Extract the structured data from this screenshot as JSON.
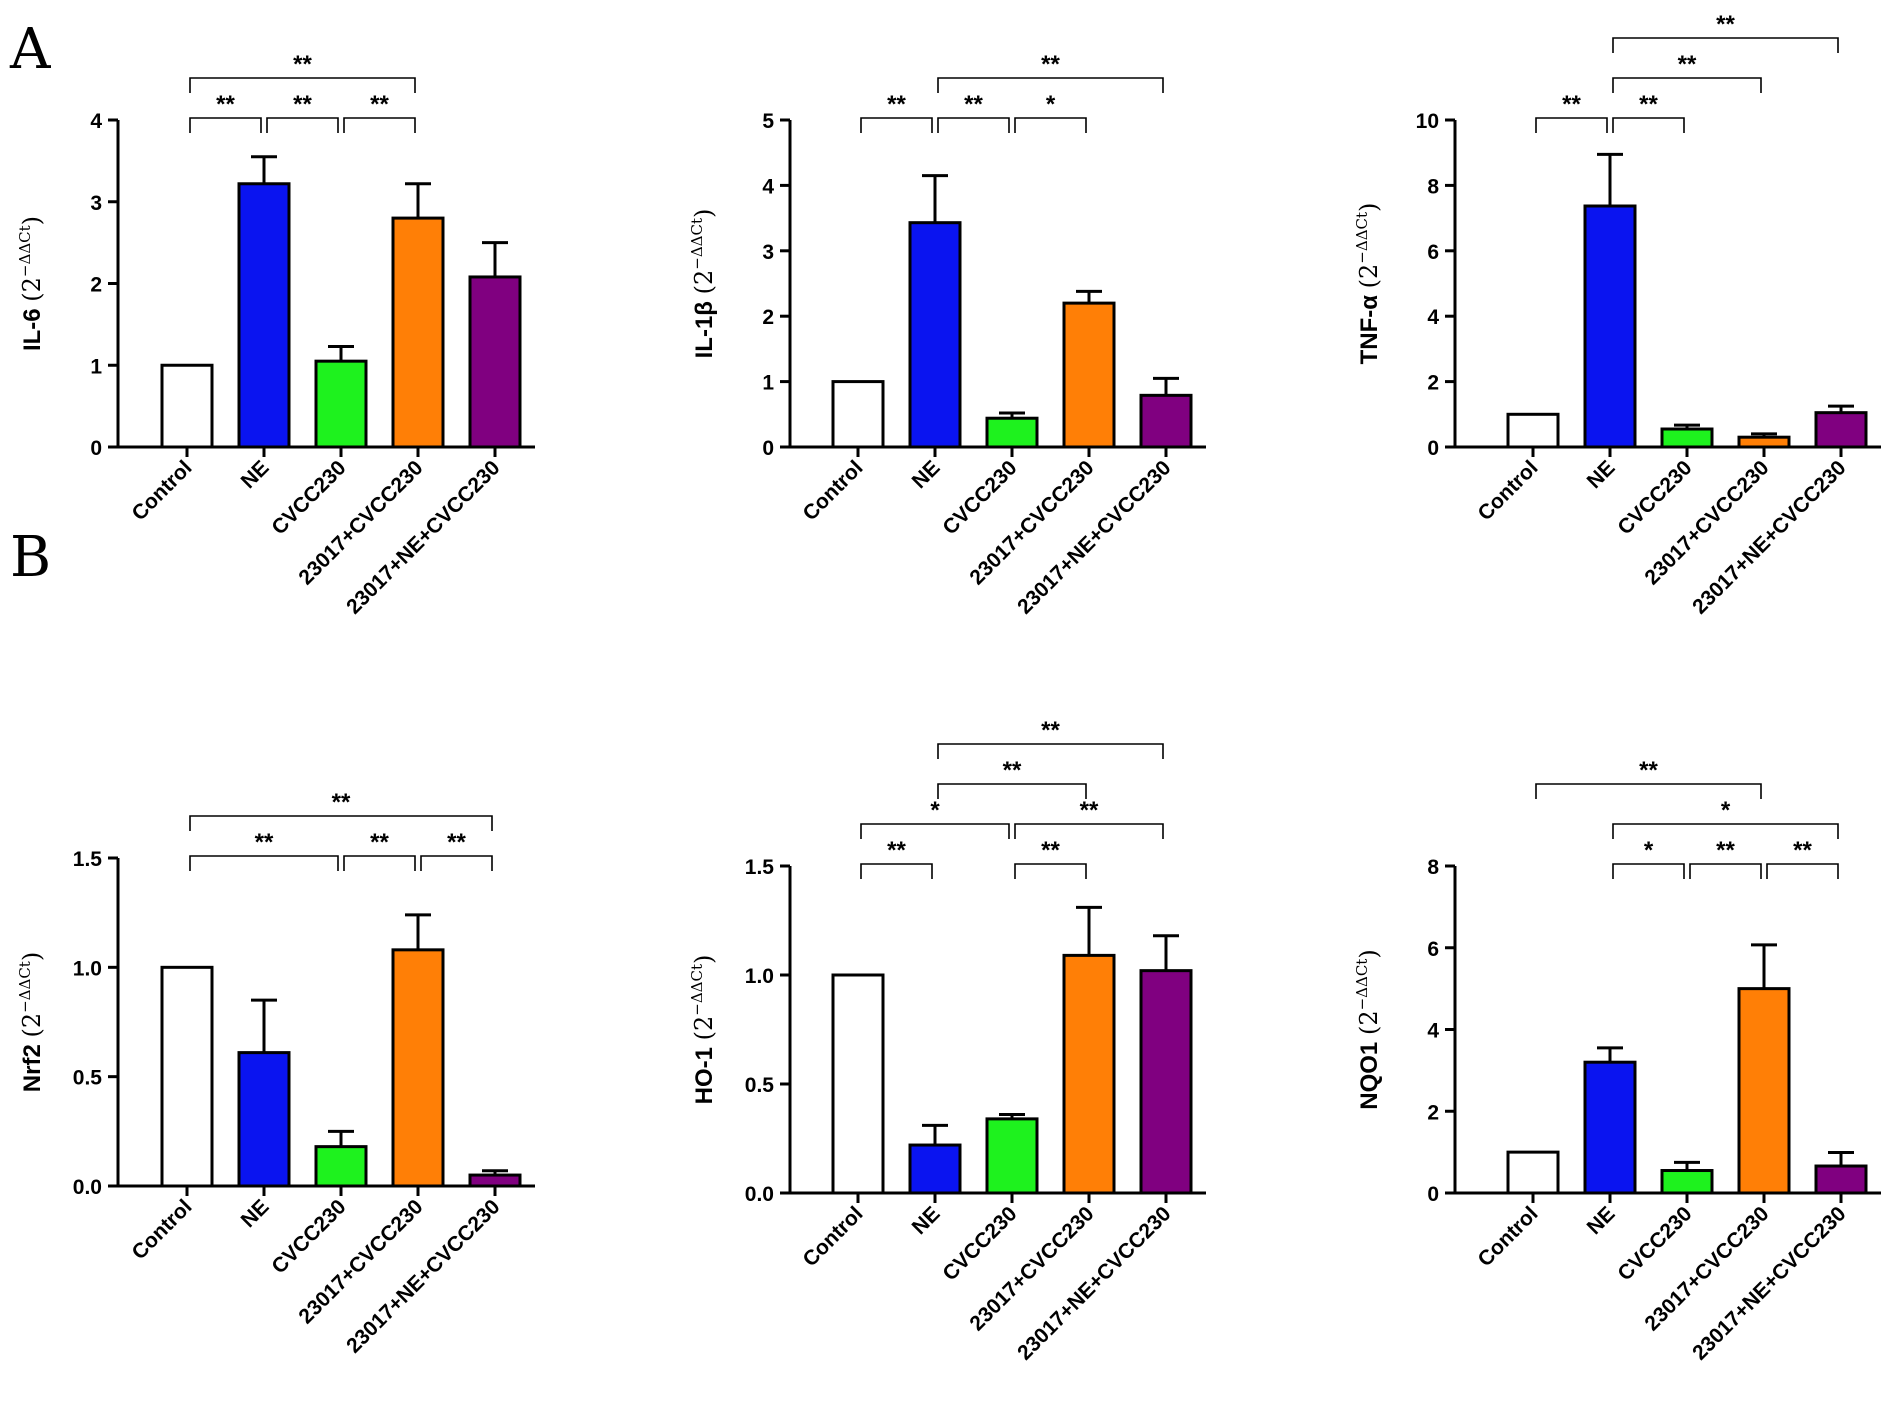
{
  "panel_labels": {
    "a": "A",
    "b": "B"
  },
  "categories": [
    "Control",
    "NE",
    "CVCC230",
    "23017+CVCC230",
    "23017+NE+CVCC230"
  ],
  "bar_colors": [
    "#ffffff",
    "#0a14f0",
    "#1ef21e",
    "#ff7f06",
    "#800080"
  ],
  "ylabel_suffix": "(2",
  "ylabel_superscript": "−ΔΔCt",
  "ylabel_close": ")",
  "chart_data": [
    {
      "type": "bar",
      "gene": "IL-6",
      "ylim": [
        0,
        4
      ],
      "ticks": [
        0,
        1,
        2,
        3,
        4
      ],
      "tick_labels": [
        "0",
        "1",
        "2",
        "3",
        "4"
      ],
      "values": [
        1.0,
        3.22,
        1.05,
        2.8,
        2.08
      ],
      "errors": [
        0,
        0.33,
        0.18,
        0.42,
        0.42
      ],
      "significance": [
        {
          "from": 0,
          "to": 1,
          "label": "**"
        },
        {
          "from": 1,
          "to": 2,
          "label": "**"
        },
        {
          "from": 2,
          "to": 3,
          "label": "**"
        },
        {
          "from": 0,
          "to": 3,
          "label": "**"
        }
      ]
    },
    {
      "type": "bar",
      "gene": "IL-1β",
      "ylim": [
        0,
        5
      ],
      "ticks": [
        0,
        1,
        2,
        3,
        4,
        5
      ],
      "tick_labels": [
        "0",
        "1",
        "2",
        "3",
        "4",
        "5"
      ],
      "values": [
        1.0,
        3.43,
        0.44,
        2.2,
        0.79
      ],
      "errors": [
        0,
        0.72,
        0.08,
        0.18,
        0.26
      ],
      "significance": [
        {
          "from": 0,
          "to": 1,
          "label": "**"
        },
        {
          "from": 1,
          "to": 2,
          "label": "**"
        },
        {
          "from": 2,
          "to": 3,
          "label": "*"
        },
        {
          "from": 1,
          "to": 4,
          "label": "**"
        }
      ]
    },
    {
      "type": "bar",
      "gene": "TNF-α",
      "ylim": [
        0,
        10
      ],
      "ticks": [
        0,
        2,
        4,
        6,
        8,
        10
      ],
      "tick_labels": [
        "0",
        "2",
        "4",
        "6",
        "8",
        "10"
      ],
      "values": [
        1.0,
        7.37,
        0.55,
        0.3,
        1.05
      ],
      "errors": [
        0,
        1.58,
        0.12,
        0.1,
        0.2
      ],
      "significance": [
        {
          "from": 0,
          "to": 1,
          "label": "**"
        },
        {
          "from": 1,
          "to": 2,
          "label": "**"
        },
        {
          "from": 1,
          "to": 3,
          "label": "**"
        },
        {
          "from": 1,
          "to": 4,
          "label": "**"
        }
      ]
    },
    {
      "type": "bar",
      "gene": "Nrf2",
      "ylim": [
        0,
        1.5
      ],
      "ticks": [
        0,
        0.5,
        1.0,
        1.5
      ],
      "tick_labels": [
        "0.0",
        "0.5",
        "1.0",
        "1.5"
      ],
      "values": [
        1.0,
        0.61,
        0.18,
        1.08,
        0.05
      ],
      "errors": [
        0,
        0.24,
        0.07,
        0.16,
        0.02
      ],
      "significance": [
        {
          "from": 0,
          "to": 2,
          "label": "**"
        },
        {
          "from": 2,
          "to": 3,
          "label": "**"
        },
        {
          "from": 3,
          "to": 4,
          "label": "**"
        },
        {
          "from": 0,
          "to": 4,
          "label": "**"
        }
      ]
    },
    {
      "type": "bar",
      "gene": "HO-1",
      "ylim": [
        0,
        1.5
      ],
      "ticks": [
        0,
        0.5,
        1.0,
        1.5
      ],
      "tick_labels": [
        "0.0",
        "0.5",
        "1.0",
        "1.5"
      ],
      "values": [
        1.0,
        0.22,
        0.34,
        1.09,
        1.02
      ],
      "errors": [
        0,
        0.09,
        0.02,
        0.22,
        0.16
      ],
      "significance": [
        {
          "from": 0,
          "to": 1,
          "label": "**"
        },
        {
          "from": 2,
          "to": 3,
          "label": "**"
        },
        {
          "from": 0,
          "to": 2,
          "label": "*"
        },
        {
          "from": 2,
          "to": 4,
          "label": "**"
        },
        {
          "from": 1,
          "to": 3,
          "label": "**"
        },
        {
          "from": 1,
          "to": 4,
          "label": "**"
        }
      ]
    },
    {
      "type": "bar",
      "gene": "NQO1",
      "ylim": [
        0,
        8
      ],
      "ticks": [
        0,
        2,
        4,
        6,
        8
      ],
      "tick_labels": [
        "0",
        "2",
        "4",
        "6",
        "8"
      ],
      "values": [
        1.0,
        3.2,
        0.55,
        5.0,
        0.66
      ],
      "errors": [
        0,
        0.35,
        0.2,
        1.07,
        0.33
      ],
      "significance": [
        {
          "from": 1,
          "to": 2,
          "label": "*"
        },
        {
          "from": 2,
          "to": 3,
          "label": "**"
        },
        {
          "from": 3,
          "to": 4,
          "label": "**"
        },
        {
          "from": 1,
          "to": 4,
          "label": "*"
        },
        {
          "from": 0,
          "to": 3,
          "label": "**"
        }
      ]
    }
  ]
}
